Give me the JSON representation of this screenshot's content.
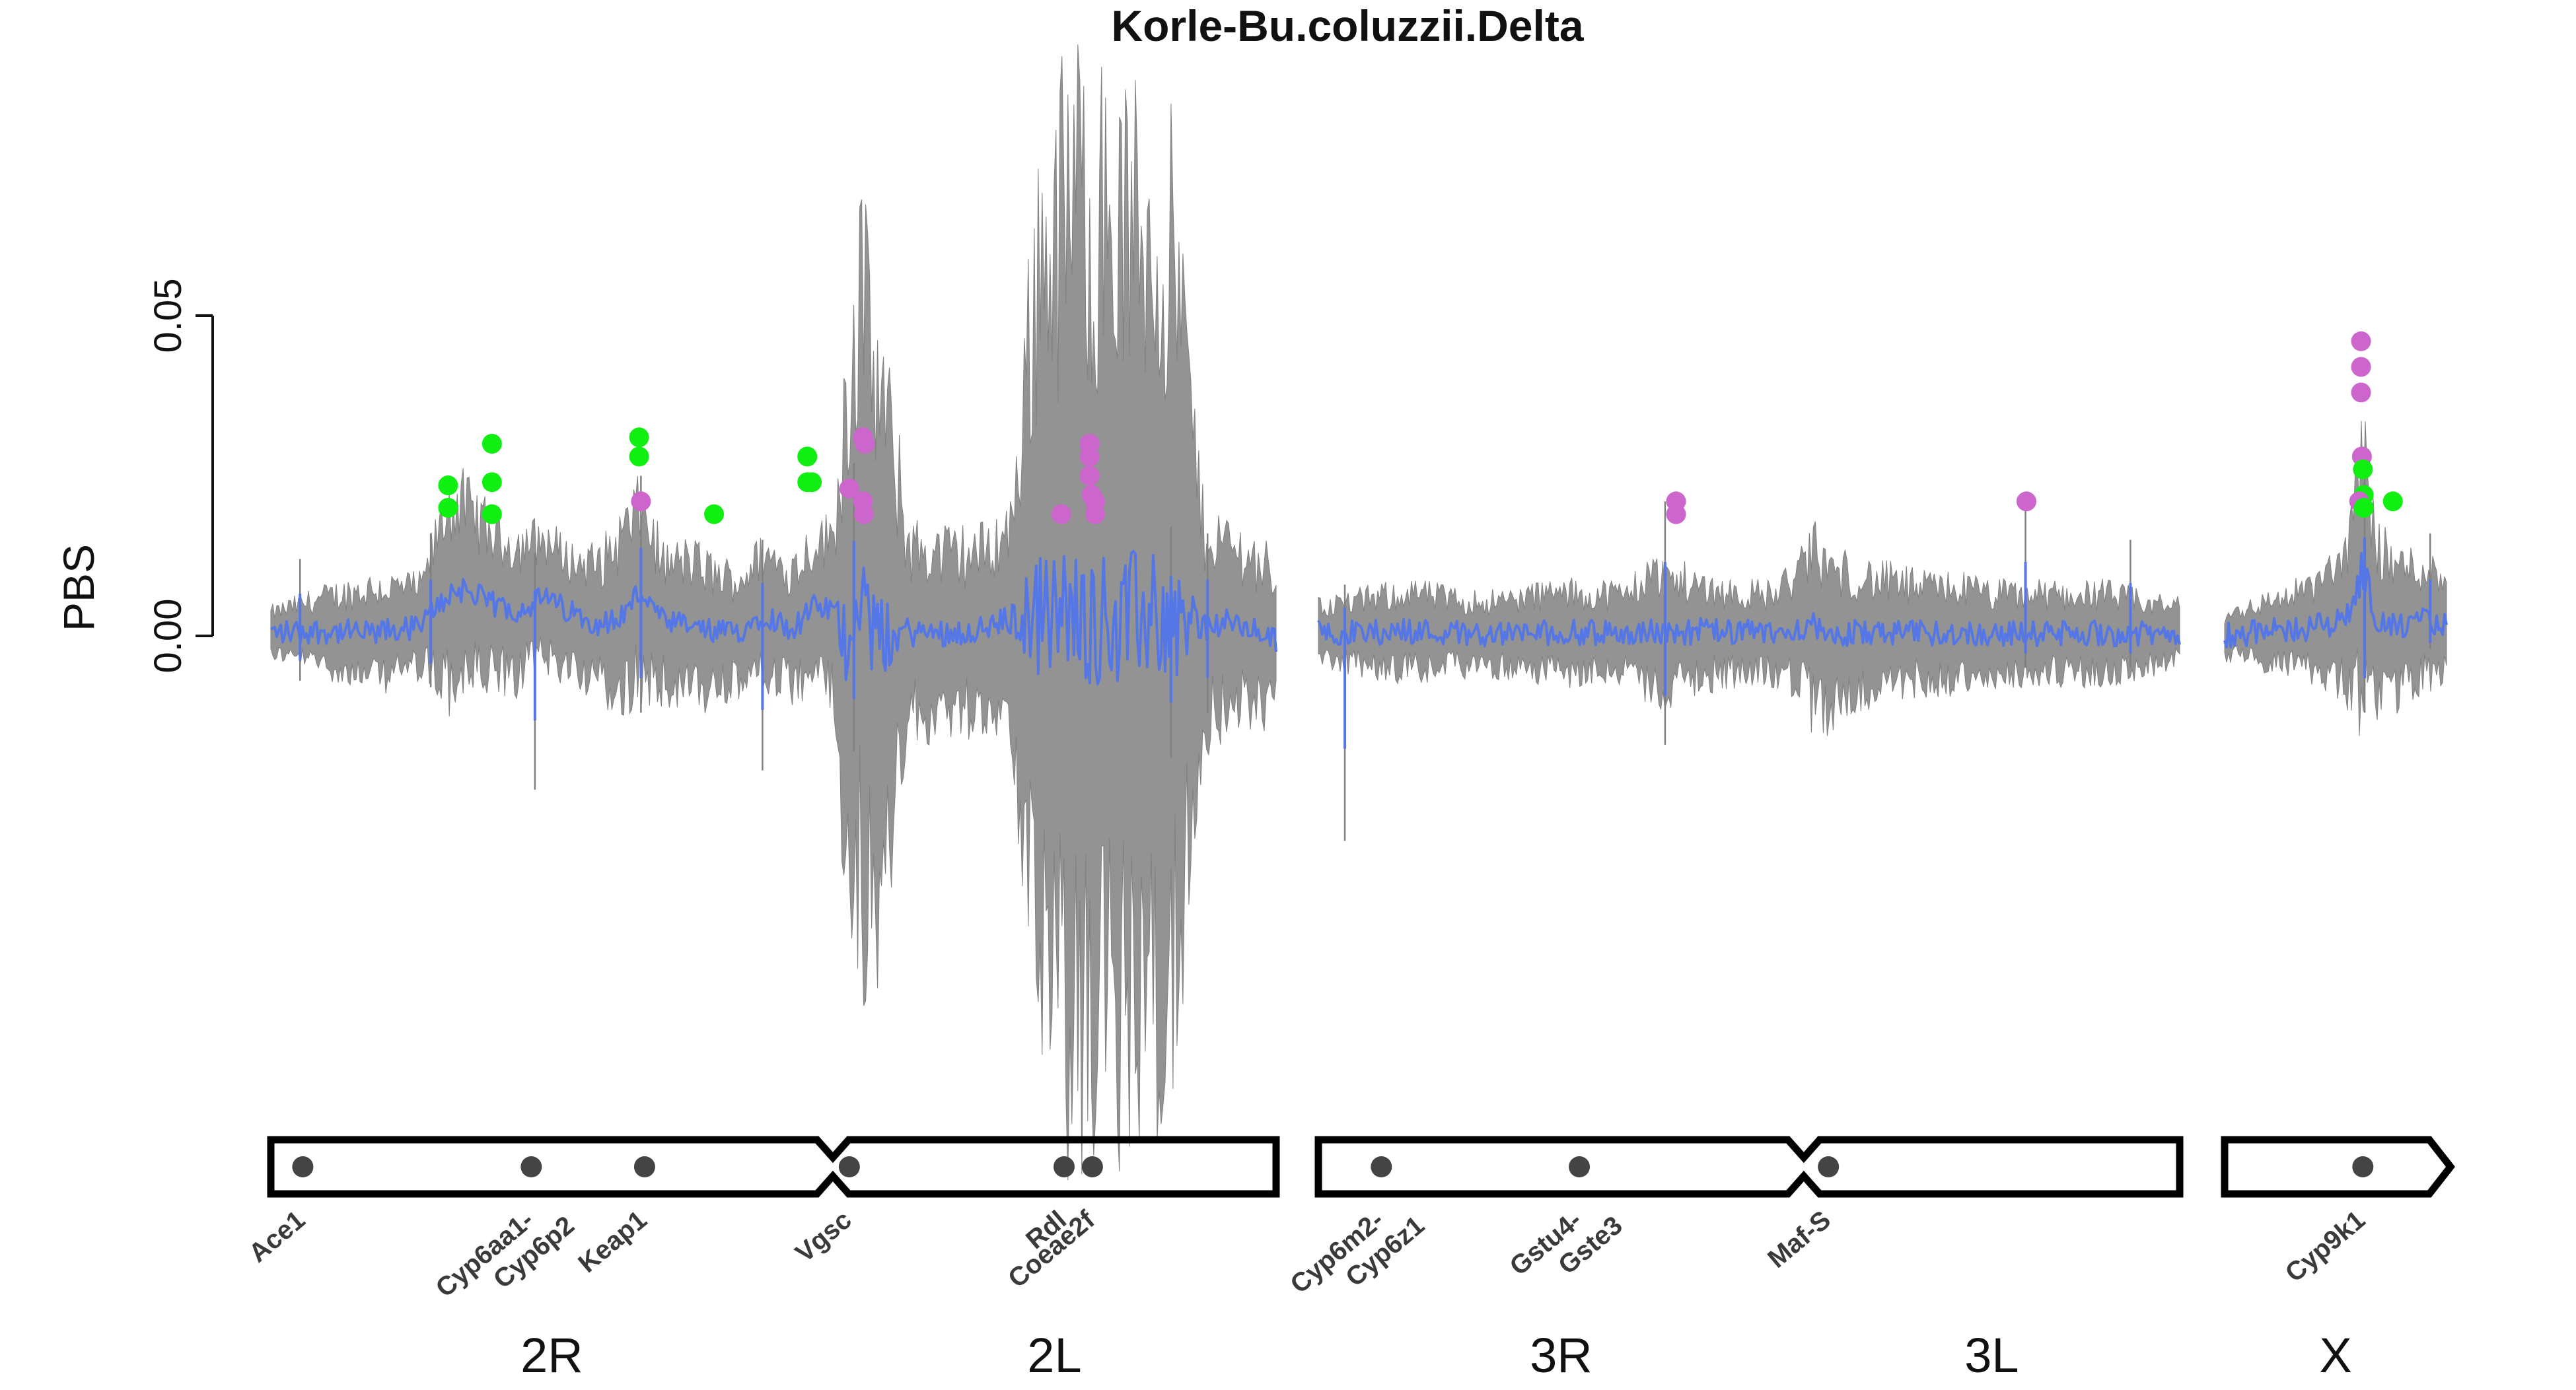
{
  "chart_data": {
    "type": "line",
    "title": "Korle-Bu.coluzzii.Delta",
    "xlabel": "",
    "ylabel": "PBS",
    "yticks": [
      "0.00",
      "0.05"
    ],
    "ylim": [
      -0.072,
      0.088
    ],
    "grid": false,
    "legend": "none",
    "colors": {
      "pbs_line": "#5577e6",
      "pbs_ci_band": "#808080",
      "peak_green": "#11ee11",
      "peak_pink": "#cc66cc",
      "gene_dot": "#444444",
      "chromosome_outline": "#000000"
    },
    "arms": [
      {
        "name": "2R",
        "start": 0,
        "end": 61.5
      },
      {
        "name": "2L",
        "start": 61.5,
        "end": 110
      },
      {
        "name": "3R",
        "start": 0,
        "end": 53.2
      },
      {
        "name": "3L",
        "start": 53.2,
        "end": 94.4
      },
      {
        "name": "X",
        "start": 0,
        "end": 24.4
      }
    ],
    "chromosomes": [
      {
        "id": "2",
        "start": 0,
        "end": 110,
        "centromere": 61.5,
        "pointed_end": false
      },
      {
        "id": "3",
        "start": 0,
        "end": 94.4,
        "centromere": 53.2,
        "pointed_end": false
      },
      {
        "id": "X",
        "start": 0,
        "end": 24.4,
        "centromere": null,
        "pointed_end": true
      }
    ],
    "genes": [
      {
        "label": "Ace1",
        "chrom": "2",
        "pos": 3.5
      },
      {
        "label": "Cyp6aa1-\nCyp6p2",
        "chrom": "2",
        "pos": 28.5
      },
      {
        "label": "Keap1",
        "chrom": "2",
        "pos": 40.9
      },
      {
        "label": "Vgsc",
        "chrom": "2",
        "pos": 63.3
      },
      {
        "label": "Rdl",
        "chrom": "2",
        "pos": 86.8
      },
      {
        "label": "Coeae2f",
        "chrom": "2",
        "pos": 89.9
      },
      {
        "label": "Cyp6m2-\nCyp6z1",
        "chrom": "3",
        "pos": 6.9
      },
      {
        "label": "Gstu4-\nGste3",
        "chrom": "3",
        "pos": 28.6
      },
      {
        "label": "Maf-S",
        "chrom": "3",
        "pos": 55.9
      },
      {
        "label": "Cyp9k1",
        "chrom": "X",
        "pos": 15.2
      }
    ],
    "series": [
      {
        "chrom": "2",
        "pos": [
          0,
          5.5,
          11,
          16.5,
          18,
          19.5,
          21,
          24,
          27,
          30,
          33,
          36,
          38,
          40.5,
          43,
          46,
          48.5,
          51,
          54,
          57,
          59.5,
          61.5,
          63,
          64.5,
          66,
          70,
          74,
          78,
          81,
          84,
          86,
          88,
          90,
          93,
          96,
          99,
          102,
          105,
          108,
          110
        ],
        "pbs": [
          0.0005,
          0.0008,
          0.0003,
          0.0015,
          0.0045,
          0.0065,
          0.0075,
          0.005,
          0.004,
          0.006,
          0.0035,
          0.002,
          0.0025,
          0.007,
          0.002,
          0.0015,
          0.0005,
          0.0005,
          0.0035,
          0.001,
          0.0045,
          0.004,
          -0.001,
          0.0085,
          -0.0005,
          0.0005,
          0.0005,
          0.001,
          0.0025,
          0.0035,
          0.003,
          0.0035,
          0.003,
          0.0025,
          0.0035,
          0.0025,
          0.0015,
          0.002,
          0.0005,
          -0.0005
        ],
        "ci_half_width": [
          0.003,
          0.005,
          0.007,
          0.006,
          0.01,
          0.014,
          0.013,
          0.011,
          0.01,
          0.009,
          0.008,
          0.009,
          0.012,
          0.013,
          0.009,
          0.01,
          0.009,
          0.008,
          0.009,
          0.009,
          0.01,
          0.011,
          0.038,
          0.045,
          0.042,
          0.013,
          0.012,
          0.012,
          0.014,
          0.055,
          0.06,
          0.065,
          0.062,
          0.06,
          0.058,
          0.055,
          0.015,
          0.012,
          0.011,
          0.01
        ]
      },
      {
        "chrom": "3",
        "pos": [
          0,
          5,
          10,
          15,
          20,
          25,
          30,
          34,
          36,
          39,
          42,
          46,
          50,
          53.2,
          54,
          56,
          58,
          62,
          66,
          70,
          74,
          78,
          82,
          86,
          90,
          94.4
        ],
        "pbs": [
          0.0005,
          0.0005,
          0.0008,
          0.0005,
          0.0003,
          0.0005,
          0.0005,
          0.0004,
          0.0006,
          0.0005,
          0.0008,
          0.0005,
          0.0004,
          0.0015,
          0.002,
          -0.001,
          0.0005,
          0.0004,
          0.0004,
          0.0005,
          0.0003,
          0.0004,
          0.0003,
          0.0005,
          0.0002,
          0.0004
        ],
        "ci_half_width": [
          0.004,
          0.005,
          0.006,
          0.005,
          0.005,
          0.006,
          0.006,
          0.006,
          0.009,
          0.008,
          0.007,
          0.006,
          0.006,
          0.009,
          0.012,
          0.011,
          0.009,
          0.008,
          0.007,
          0.007,
          0.006,
          0.006,
          0.006,
          0.006,
          0.005,
          0.004
        ]
      },
      {
        "chrom": "X",
        "pos": [
          0,
          3,
          6,
          9,
          12,
          14,
          15.2,
          16.5,
          18,
          20,
          22,
          24.4
        ],
        "pbs": [
          0.0002,
          0.0005,
          0.0008,
          0.0012,
          0.002,
          0.004,
          0.011,
          0.003,
          0.0015,
          0.0015,
          0.0025,
          0.0015
        ],
        "ci_half_width": [
          0.003,
          0.004,
          0.005,
          0.006,
          0.008,
          0.012,
          0.02,
          0.012,
          0.01,
          0.009,
          0.008,
          0.007
        ]
      }
    ],
    "spikes": [
      {
        "chrom": "2",
        "pos": 3.2,
        "top": 0.012,
        "bottom": -0.007
      },
      {
        "chrom": "2",
        "pos": 17.5,
        "top": 0.016,
        "bottom": -0.008
      },
      {
        "chrom": "2",
        "pos": 28.9,
        "top": 0.013,
        "bottom": -0.024
      },
      {
        "chrom": "2",
        "pos": 40.5,
        "top": 0.025,
        "bottom": -0.012
      },
      {
        "chrom": "2",
        "pos": 53.8,
        "top": 0.015,
        "bottom": -0.021
      },
      {
        "chrom": "2",
        "pos": 63.8,
        "top": 0.027,
        "bottom": -0.018
      },
      {
        "chrom": "2",
        "pos": 98.5,
        "top": 0.017,
        "bottom": -0.019
      },
      {
        "chrom": "2",
        "pos": 102.5,
        "top": 0.016,
        "bottom": -0.012
      },
      {
        "chrom": "3",
        "pos": 2.9,
        "top": 0.008,
        "bottom": -0.032
      },
      {
        "chrom": "3",
        "pos": 38.0,
        "top": 0.021,
        "bottom": -0.017
      },
      {
        "chrom": "3",
        "pos": 77.5,
        "top": 0.021,
        "bottom": -0.005
      },
      {
        "chrom": "3",
        "pos": 89.0,
        "top": 0.015,
        "bottom": -0.005
      },
      {
        "chrom": "X",
        "pos": 15.4,
        "top": 0.028,
        "bottom": -0.012
      },
      {
        "chrom": "X",
        "pos": 22.6,
        "top": 0.016,
        "bottom": -0.002
      }
    ],
    "peak_points": [
      {
        "chrom": "2",
        "pos": 19.4,
        "pbs": 0.0235,
        "color": "green"
      },
      {
        "chrom": "2",
        "pos": 19.4,
        "pbs": 0.02,
        "color": "green"
      },
      {
        "chrom": "2",
        "pos": 24.2,
        "pbs": 0.03,
        "color": "green"
      },
      {
        "chrom": "2",
        "pos": 24.2,
        "pbs": 0.024,
        "color": "green"
      },
      {
        "chrom": "2",
        "pos": 24.2,
        "pbs": 0.019,
        "color": "green"
      },
      {
        "chrom": "2",
        "pos": 40.3,
        "pbs": 0.031,
        "color": "green"
      },
      {
        "chrom": "2",
        "pos": 40.3,
        "pbs": 0.028,
        "color": "green"
      },
      {
        "chrom": "2",
        "pos": 40.5,
        "pbs": 0.021,
        "color": "pink"
      },
      {
        "chrom": "2",
        "pos": 48.5,
        "pbs": 0.019,
        "color": "green"
      },
      {
        "chrom": "2",
        "pos": 58.7,
        "pbs": 0.028,
        "color": "green"
      },
      {
        "chrom": "2",
        "pos": 58.7,
        "pbs": 0.024,
        "color": "green"
      },
      {
        "chrom": "2",
        "pos": 59.2,
        "pbs": 0.024,
        "color": "green"
      },
      {
        "chrom": "2",
        "pos": 63.3,
        "pbs": 0.023,
        "color": "pink"
      },
      {
        "chrom": "2",
        "pos": 64.8,
        "pbs": 0.031,
        "color": "pink"
      },
      {
        "chrom": "2",
        "pos": 65.0,
        "pbs": 0.03,
        "color": "pink"
      },
      {
        "chrom": "2",
        "pos": 64.8,
        "pbs": 0.021,
        "color": "pink"
      },
      {
        "chrom": "2",
        "pos": 64.9,
        "pbs": 0.019,
        "color": "pink"
      },
      {
        "chrom": "2",
        "pos": 86.5,
        "pbs": 0.019,
        "color": "pink"
      },
      {
        "chrom": "2",
        "pos": 89.6,
        "pbs": 0.03,
        "color": "pink"
      },
      {
        "chrom": "2",
        "pos": 89.6,
        "pbs": 0.028,
        "color": "pink"
      },
      {
        "chrom": "2",
        "pos": 89.6,
        "pbs": 0.025,
        "color": "pink"
      },
      {
        "chrom": "2",
        "pos": 89.8,
        "pbs": 0.022,
        "color": "pink"
      },
      {
        "chrom": "2",
        "pos": 90.2,
        "pbs": 0.021,
        "color": "pink"
      },
      {
        "chrom": "2",
        "pos": 90.2,
        "pbs": 0.019,
        "color": "pink"
      },
      {
        "chrom": "3",
        "pos": 39.2,
        "pbs": 0.021,
        "color": "pink"
      },
      {
        "chrom": "3",
        "pos": 39.2,
        "pbs": 0.019,
        "color": "pink"
      },
      {
        "chrom": "3",
        "pos": 77.6,
        "pbs": 0.021,
        "color": "pink"
      },
      {
        "chrom": "X",
        "pos": 15.0,
        "pbs": 0.046,
        "color": "pink"
      },
      {
        "chrom": "X",
        "pos": 15.0,
        "pbs": 0.042,
        "color": "pink"
      },
      {
        "chrom": "X",
        "pos": 15.0,
        "pbs": 0.038,
        "color": "pink"
      },
      {
        "chrom": "X",
        "pos": 15.1,
        "pbs": 0.028,
        "color": "pink"
      },
      {
        "chrom": "X",
        "pos": 15.2,
        "pbs": 0.026,
        "color": "green"
      },
      {
        "chrom": "X",
        "pos": 15.3,
        "pbs": 0.022,
        "color": "green"
      },
      {
        "chrom": "X",
        "pos": 14.8,
        "pbs": 0.021,
        "color": "pink"
      },
      {
        "chrom": "X",
        "pos": 15.3,
        "pbs": 0.02,
        "color": "green"
      },
      {
        "chrom": "X",
        "pos": 18.5,
        "pbs": 0.021,
        "color": "green"
      }
    ]
  }
}
